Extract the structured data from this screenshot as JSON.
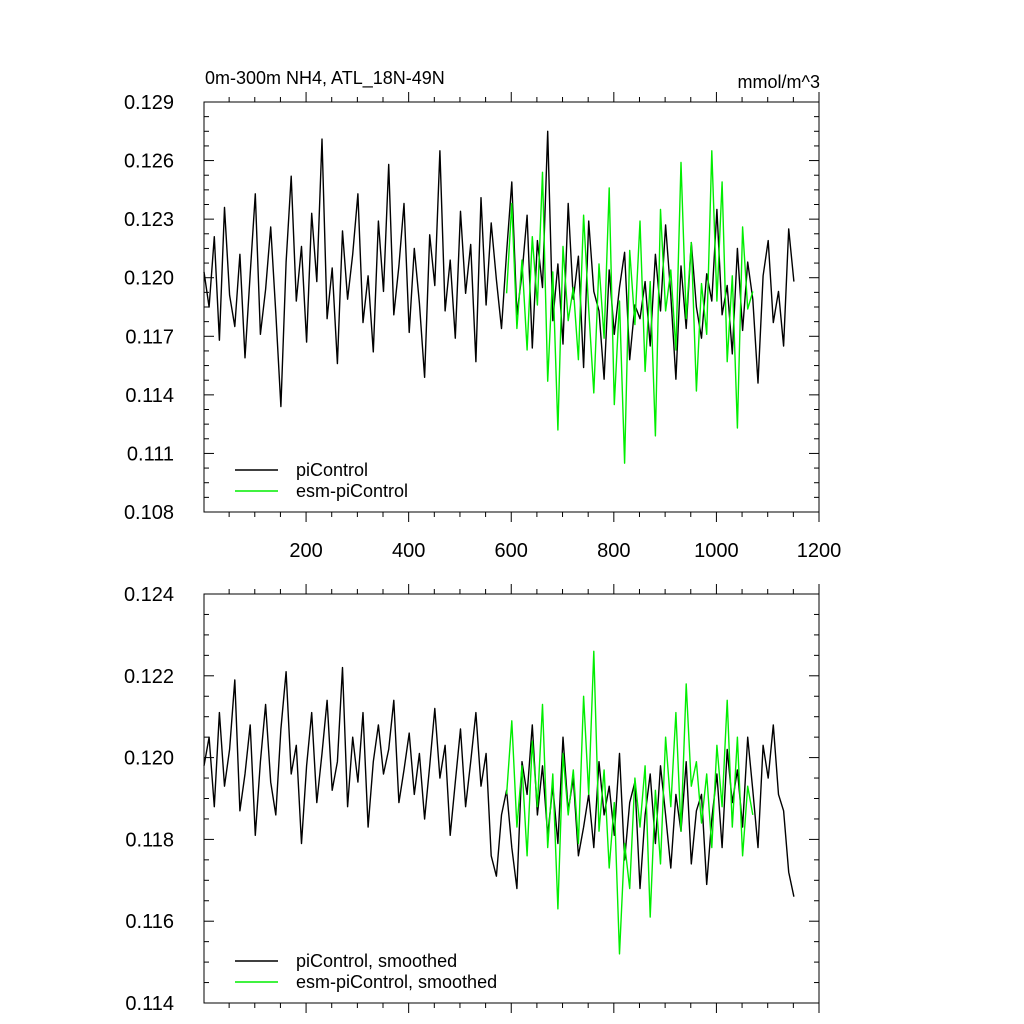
{
  "chart_data": [
    {
      "type": "line",
      "title": "0m-300m NH4, ATL_18N-49N",
      "units": "mmol/m^3",
      "xlim": [
        1,
        1200
      ],
      "ylim": [
        0.108,
        0.129
      ],
      "x_ticks": [
        200,
        400,
        600,
        800,
        1000,
        1200
      ],
      "y_ticks": [
        0.108,
        0.111,
        0.114,
        0.117,
        0.12,
        0.123,
        0.126,
        0.129
      ],
      "y_tick_labels": [
        "0.108",
        "0.111",
        "0.114",
        "0.117",
        "0.120",
        "0.123",
        "0.126",
        "0.129"
      ],
      "legend_placement": "bottom-left",
      "series": [
        {
          "name": "piControl",
          "color": "#000000",
          "x_start": 1,
          "x_step": 10,
          "values": [
            0.1203,
            0.1185,
            0.1221,
            0.1168,
            0.1236,
            0.1191,
            0.1175,
            0.1212,
            0.1159,
            0.1202,
            0.1243,
            0.1171,
            0.1194,
            0.1226,
            0.1182,
            0.1134,
            0.1208,
            0.1252,
            0.1188,
            0.1216,
            0.1167,
            0.1233,
            0.1198,
            0.1271,
            0.1179,
            0.1205,
            0.1156,
            0.1224,
            0.1189,
            0.1212,
            0.1243,
            0.1177,
            0.1201,
            0.1162,
            0.1229,
            0.1193,
            0.1258,
            0.1181,
            0.1206,
            0.1238,
            0.1172,
            0.1215,
            0.1187,
            0.1149,
            0.1222,
            0.1196,
            0.1265,
            0.1183,
            0.1209,
            0.1169,
            0.1234,
            0.1192,
            0.1217,
            0.1157,
            0.1241,
            0.1186,
            0.1228,
            0.1199,
            0.1174,
            0.1213,
            0.1249,
            0.1181,
            0.1202,
            0.1232,
            0.1164,
            0.1219,
            0.1195,
            0.1275,
            0.1178,
            0.1207,
            0.1166,
            0.1238,
            0.1189,
            0.1211,
            0.1154,
            0.1229,
            0.1193,
            0.1183,
            0.1148,
            0.1204,
            0.1171,
            0.1195,
            0.1213,
            0.1158,
            0.1186,
            0.1179,
            0.1198,
            0.1165,
            0.1212,
            0.1183,
            0.1227,
            0.1191,
            0.1148,
            0.1206,
            0.1174,
            0.1218,
            0.1185,
            0.1169,
            0.1202,
            0.1188,
            0.1235,
            0.1181,
            0.1196,
            0.1161,
            0.1215,
            0.1173,
            0.1208,
            0.1189,
            0.1146,
            0.1201,
            0.1219,
            0.1177,
            0.1193,
            0.1165,
            0.1225,
            0.1198
          ]
        },
        {
          "name": "esm-piControl",
          "color": "#00ee00",
          "x_start": 591,
          "x_step": 10,
          "values": [
            0.1192,
            0.1238,
            0.1174,
            0.1209,
            0.1163,
            0.1221,
            0.1186,
            0.1254,
            0.1147,
            0.1203,
            0.1122,
            0.1216,
            0.1178,
            0.1195,
            0.1158,
            0.1232,
            0.1184,
            0.1141,
            0.1207,
            0.1169,
            0.1246,
            0.1135,
            0.1188,
            0.1105,
            0.1214,
            0.1176,
            0.1229,
            0.1152,
            0.1198,
            0.1119,
            0.1235,
            0.1183,
            0.1204,
            0.1163,
            0.1259,
            0.1179,
            0.1218,
            0.1142,
            0.1197,
            0.1171,
            0.1265,
            0.1188,
            0.1249,
            0.1157,
            0.1201,
            0.1123,
            0.1226,
            0.1184,
            0.1193
          ]
        }
      ]
    },
    {
      "type": "line",
      "xlim": [
        1,
        1200
      ],
      "ylim": [
        0.114,
        0.124
      ],
      "x_ticks": [
        200,
        400,
        600,
        800,
        1000,
        1200
      ],
      "y_ticks": [
        0.114,
        0.116,
        0.118,
        0.12,
        0.122,
        0.124
      ],
      "y_tick_labels": [
        "0.114",
        "0.116",
        "0.118",
        "0.120",
        "0.122",
        "0.124"
      ],
      "legend_placement": "bottom-left",
      "series": [
        {
          "name": "piControl, smoothed",
          "color": "#000000",
          "x_start": 1,
          "x_step": 10,
          "values": [
            0.1198,
            0.1205,
            0.1188,
            0.1211,
            0.1193,
            0.1202,
            0.1219,
            0.1187,
            0.1196,
            0.1208,
            0.1181,
            0.1199,
            0.1213,
            0.1194,
            0.1186,
            0.1207,
            0.1221,
            0.1196,
            0.1203,
            0.1179,
            0.1198,
            0.1211,
            0.1189,
            0.1201,
            0.1214,
            0.1192,
            0.1199,
            0.1222,
            0.1188,
            0.1205,
            0.1194,
            0.1211,
            0.1183,
            0.1199,
            0.1208,
            0.1196,
            0.1202,
            0.1214,
            0.1189,
            0.1197,
            0.1206,
            0.1191,
            0.1201,
            0.1185,
            0.1198,
            0.1212,
            0.1195,
            0.1203,
            0.1181,
            0.1194,
            0.1207,
            0.1188,
            0.1199,
            0.1211,
            0.1193,
            0.1201,
            0.1176,
            0.1171,
            0.1186,
            0.1192,
            0.1178,
            0.1168,
            0.1199,
            0.1191,
            0.1208,
            0.1186,
            0.1198,
            0.1181,
            0.1193,
            0.1179,
            0.1205,
            0.1187,
            0.1195,
            0.1176,
            0.1183,
            0.1191,
            0.1178,
            0.1199,
            0.1186,
            0.1193,
            0.1181,
            0.1201,
            0.1175,
            0.1189,
            0.1194,
            0.1168,
            0.1186,
            0.1196,
            0.1179,
            0.1198,
            0.1186,
            0.1173,
            0.1191,
            0.1182,
            0.1199,
            0.1174,
            0.1187,
            0.1191,
            0.1169,
            0.1185,
            0.1196,
            0.1178,
            0.1202,
            0.1189,
            0.1197,
            0.1183,
            0.1205,
            0.1192,
            0.1178,
            0.1203,
            0.1195,
            0.1208,
            0.1191,
            0.1187,
            0.1172,
            0.1166
          ]
        },
        {
          "name": "esm-piControl, smoothed",
          "color": "#00ee00",
          "x_start": 591,
          "x_step": 10,
          "values": [
            0.1191,
            0.1209,
            0.1183,
            0.1198,
            0.1176,
            0.1204,
            0.1188,
            0.1213,
            0.1178,
            0.1196,
            0.1163,
            0.1201,
            0.1186,
            0.1197,
            0.1179,
            0.1215,
            0.1191,
            0.1226,
            0.1182,
            0.1197,
            0.1173,
            0.1189,
            0.1152,
            0.1179,
            0.1168,
            0.1195,
            0.1183,
            0.1198,
            0.1161,
            0.1192,
            0.1174,
            0.1205,
            0.1188,
            0.1211,
            0.1182,
            0.1218,
            0.1193,
            0.1199,
            0.1184,
            0.1196,
            0.1178,
            0.1203,
            0.1188,
            0.1214,
            0.1183,
            0.1205,
            0.1176,
            0.1193,
            0.1186
          ]
        }
      ]
    }
  ]
}
